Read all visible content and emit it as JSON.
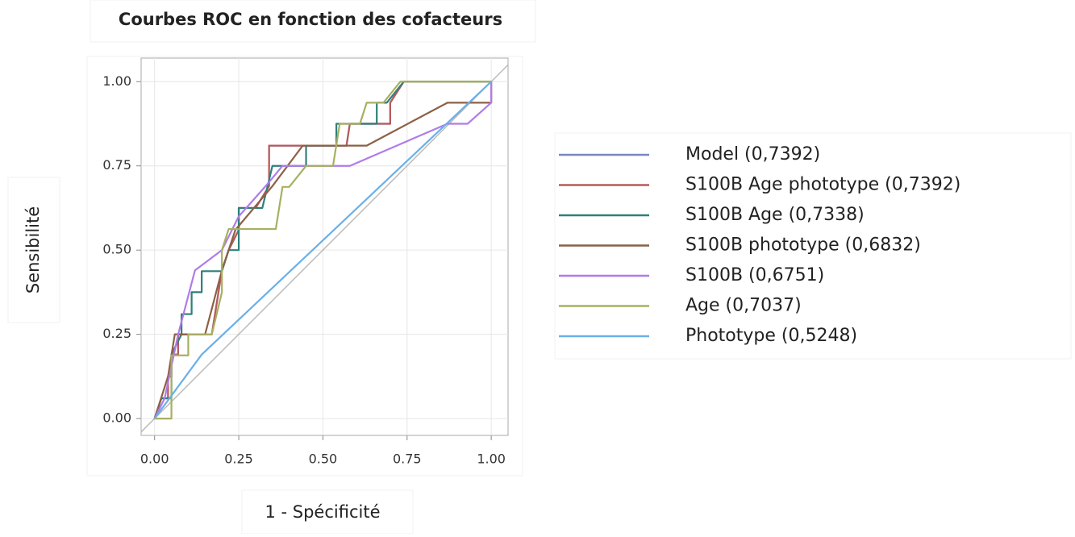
{
  "chart_data": {
    "type": "line",
    "title": "Courbes ROC en fonction des cofacteurs",
    "xlabel": "1 - Spécificité",
    "ylabel": "Sensibilité",
    "xlim": [
      -0.04,
      1.05
    ],
    "ylim": [
      -0.05,
      1.07
    ],
    "xticks": [
      {
        "value": 0,
        "label": "0.00"
      },
      {
        "value": 0.25,
        "label": "0.25"
      },
      {
        "value": 0.5,
        "label": "0.50"
      },
      {
        "value": 0.75,
        "label": "0.75"
      },
      {
        "value": 1,
        "label": "1.00"
      }
    ],
    "yticks": [
      {
        "value": 0,
        "label": "0.00"
      },
      {
        "value": 0.25,
        "label": "0.25"
      },
      {
        "value": 0.5,
        "label": "0.50"
      },
      {
        "value": 0.75,
        "label": "0.75"
      },
      {
        "value": 1,
        "label": "1.00"
      }
    ],
    "grid": true,
    "legend": "right",
    "series": [
      {
        "name": "Model (0,7392)",
        "color": "#7a87c4",
        "x": [
          0,
          0.02,
          0.04,
          0.04,
          0.05,
          0.05,
          0.07,
          0.07,
          0.17,
          0.2,
          0.22,
          0.25,
          0.25,
          0.3,
          0.34,
          0.34,
          0.57,
          0.58,
          0.7,
          0.7,
          0.74,
          1
        ],
        "values": [
          0,
          0.06,
          0.06,
          0.125,
          0.125,
          0.19,
          0.19,
          0.25,
          0.25,
          0.44,
          0.5,
          0.56,
          0.625,
          0.625,
          0.69,
          0.81,
          0.81,
          0.875,
          0.875,
          0.9375,
          1,
          1
        ]
      },
      {
        "name": "S100B Age phototype (0,7392)",
        "color": "#b85a5c",
        "x": [
          0,
          0.02,
          0.04,
          0.04,
          0.05,
          0.05,
          0.07,
          0.07,
          0.17,
          0.2,
          0.22,
          0.25,
          0.25,
          0.3,
          0.34,
          0.34,
          0.57,
          0.58,
          0.7,
          0.7,
          0.74,
          1
        ],
        "values": [
          0,
          0.06,
          0.06,
          0.125,
          0.125,
          0.19,
          0.19,
          0.25,
          0.25,
          0.44,
          0.5,
          0.56,
          0.625,
          0.625,
          0.69,
          0.81,
          0.81,
          0.875,
          0.875,
          0.9375,
          1,
          1
        ]
      },
      {
        "name": "S100B Age (0,7338)",
        "color": "#2f7f7a",
        "x": [
          0,
          0.02,
          0.05,
          0.05,
          0.08,
          0.08,
          0.11,
          0.11,
          0.14,
          0.14,
          0.2,
          0.22,
          0.25,
          0.25,
          0.32,
          0.35,
          0.45,
          0.45,
          0.54,
          0.54,
          0.66,
          0.66,
          0.69,
          0.74,
          1
        ],
        "values": [
          0,
          0.06,
          0.06,
          0.19,
          0.25,
          0.31,
          0.31,
          0.375,
          0.375,
          0.4375,
          0.4375,
          0.5,
          0.5,
          0.625,
          0.625,
          0.75,
          0.75,
          0.81,
          0.81,
          0.875,
          0.875,
          0.9375,
          0.9375,
          1,
          1
        ]
      },
      {
        "name": "S100B phototype (0,6832)",
        "color": "#8c6046",
        "x": [
          0,
          0.04,
          0.06,
          0.15,
          0.2,
          0.24,
          0.35,
          0.44,
          0.63,
          0.87,
          1,
          1
        ],
        "values": [
          0,
          0.125,
          0.25,
          0.25,
          0.44,
          0.56,
          0.69,
          0.81,
          0.81,
          0.9375,
          0.9375,
          1
        ]
      },
      {
        "name": "S100B (0,6751)",
        "color": "#b07be8",
        "x": [
          0,
          0.03,
          0.07,
          0.12,
          0.2,
          0.25,
          0.33,
          0.38,
          0.58,
          0.87,
          0.93,
          1,
          1
        ],
        "values": [
          0,
          0.06,
          0.25,
          0.44,
          0.5,
          0.6,
          0.69,
          0.75,
          0.75,
          0.875,
          0.875,
          0.9375,
          1
        ]
      },
      {
        "name": "Age (0,7037)",
        "color": "#a7b060",
        "x": [
          0,
          0.05,
          0.05,
          0.1,
          0.1,
          0.17,
          0.2,
          0.2,
          0.22,
          0.36,
          0.38,
          0.4,
          0.45,
          0.53,
          0.55,
          0.61,
          0.63,
          0.68,
          0.73,
          1
        ],
        "values": [
          0,
          0,
          0.1875,
          0.1875,
          0.25,
          0.25,
          0.375,
          0.5,
          0.5625,
          0.5625,
          0.6875,
          0.6875,
          0.75,
          0.75,
          0.875,
          0.875,
          0.9375,
          0.9375,
          1,
          1
        ]
      },
      {
        "name": "Phototype (0,5248)",
        "color": "#6ab0e8",
        "x": [
          0,
          0.14,
          1
        ],
        "values": [
          0,
          0.19,
          1
        ]
      }
    ]
  }
}
